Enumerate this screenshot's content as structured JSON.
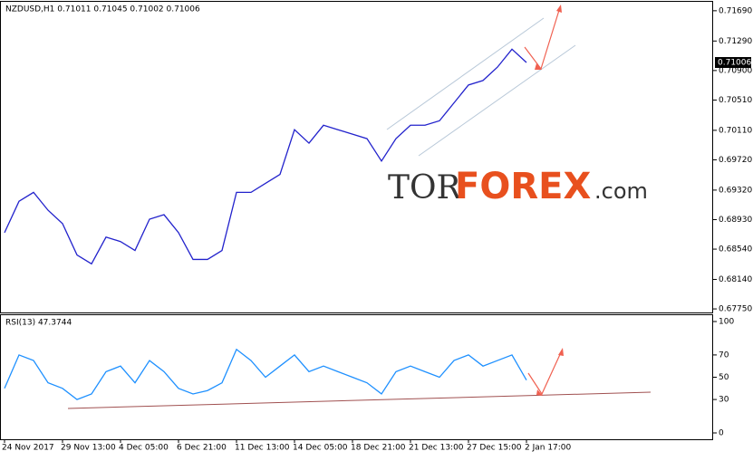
{
  "chart_data": [
    {
      "type": "line",
      "title": "NZDUSD,H1  0.71011 0.71045 0.71002 0.71006",
      "name": "NZDUSD",
      "color": "#2222cc",
      "values": [
        0.68758,
        0.69172,
        0.6929,
        0.69054,
        0.68877,
        0.68463,
        0.68345,
        0.68699,
        0.6864,
        0.68522,
        0.68936,
        0.68995,
        0.68758,
        0.68404,
        0.68404,
        0.68522,
        0.6929,
        0.6929,
        0.69409,
        0.69527,
        0.70118,
        0.6994,
        0.70177,
        0.70118,
        0.70059,
        0.7,
        0.69704,
        0.7,
        0.70177,
        0.70177,
        0.70236,
        0.70472,
        0.70709,
        0.70768,
        0.70945,
        0.71182,
        0.71006
      ],
      "last_price": 0.71006,
      "ylim": [
        0.67703,
        0.71808
      ],
      "yticks": [
        {
          "value": 0.7169,
          "label": "0.71690"
        },
        {
          "value": 0.7129,
          "label": "0.71290"
        },
        {
          "value": 0.709,
          "label": "0.70900"
        },
        {
          "value": 0.7051,
          "label": "0.70510"
        },
        {
          "value": 0.7011,
          "label": "0.70110"
        },
        {
          "value": 0.6972,
          "label": "0.69720"
        },
        {
          "value": 0.6932,
          "label": "0.69320"
        },
        {
          "value": 0.6893,
          "label": "0.68930"
        },
        {
          "value": 0.6854,
          "label": "0.68540"
        },
        {
          "value": 0.6814,
          "label": "0.68140"
        },
        {
          "value": 0.6775,
          "label": "0.67750"
        }
      ],
      "watermark": [
        "TOR",
        "FOREX",
        ".com"
      ]
    },
    {
      "type": "line",
      "title": "RSI(13) 47.3744",
      "name": "RSI",
      "color": "#1e90ff",
      "categories": [
        "24 Nov 2017",
        null,
        null,
        null,
        "29 Nov 13:00",
        null,
        null,
        null,
        "4 Dec 05:00",
        null,
        null,
        null,
        "6 Dec 21:00",
        null,
        null,
        null,
        "11 Dec 13:00",
        null,
        null,
        null,
        "14 Dec 05:00",
        null,
        null,
        null,
        "18 Dec 21:00",
        null,
        null,
        null,
        "21 Dec 13:00",
        null,
        null,
        null,
        "27 Dec 15:00",
        null,
        null,
        null,
        "2 Jan 17:00"
      ],
      "values": [
        40,
        70,
        65,
        45,
        40,
        30,
        35,
        55,
        60,
        45,
        65,
        55,
        40,
        35,
        38,
        45,
        75,
        65,
        50,
        60,
        70,
        55,
        60,
        55,
        50,
        45,
        35,
        55,
        60,
        55,
        50,
        65,
        70,
        60,
        65,
        70,
        47.3744
      ],
      "ylim": [
        -5.7,
        105.7
      ],
      "yticks": [
        100,
        70,
        50,
        30,
        0
      ]
    }
  ]
}
